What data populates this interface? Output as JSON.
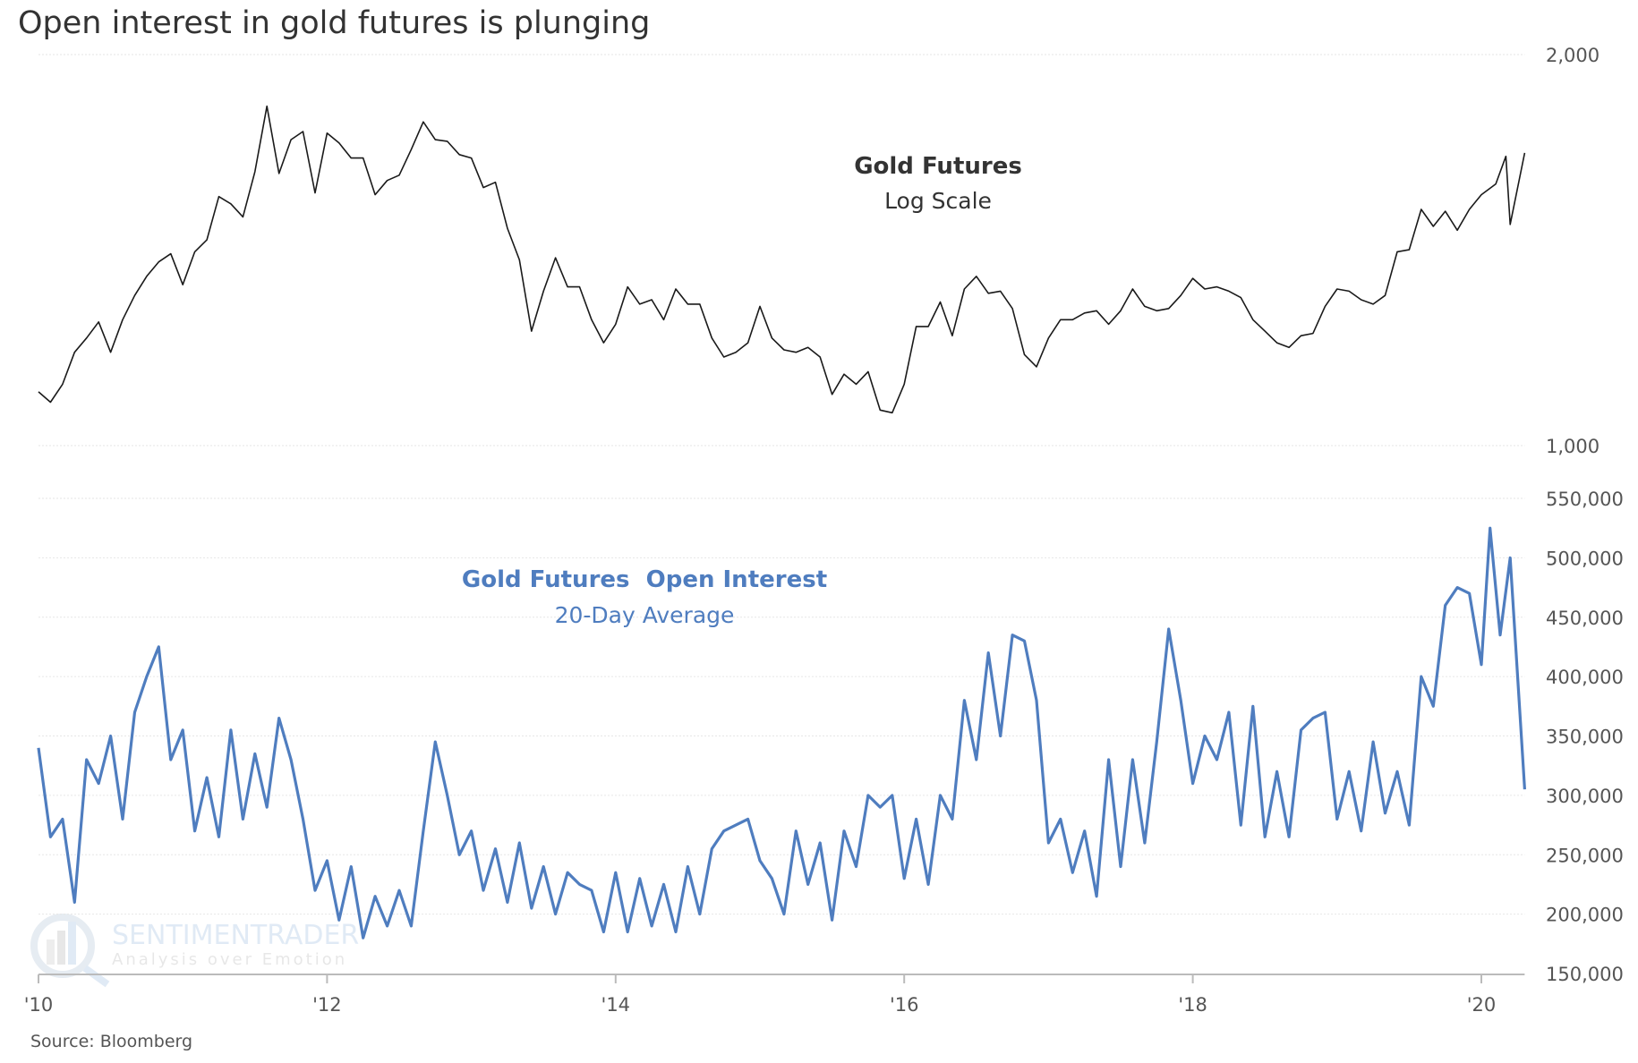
{
  "chart_data": [
    {
      "type": "line",
      "title": "Open interest in gold futures is plunging",
      "series_label": "Gold Futures",
      "series_sublabel": "Log Scale",
      "yscale": "log",
      "ylim": [
        1000,
        2000
      ],
      "yticks": [
        {
          "value": 1000,
          "label": "1,000"
        },
        {
          "value": 2000,
          "label": "2,000"
        }
      ],
      "color": "#1a1a1a",
      "start_year": 2010,
      "monthly_values": [
        1100,
        1080,
        1115,
        1180,
        1210,
        1245,
        1180,
        1250,
        1305,
        1350,
        1385,
        1405,
        1330,
        1410,
        1440,
        1555,
        1535,
        1500,
        1625,
        1825,
        1620,
        1720,
        1745,
        1565,
        1740,
        1710,
        1665,
        1665,
        1560,
        1600,
        1615,
        1690,
        1775,
        1720,
        1715,
        1675,
        1665,
        1580,
        1595,
        1470,
        1390,
        1225,
        1315,
        1395,
        1325,
        1325,
        1250,
        1200,
        1240,
        1325,
        1285,
        1295,
        1250,
        1320,
        1285,
        1285,
        1210,
        1170,
        1180,
        1200,
        1280,
        1210,
        1185,
        1180,
        1190,
        1170,
        1095,
        1135,
        1115,
        1140,
        1065,
        1060,
        1115,
        1235,
        1235,
        1290,
        1215,
        1320,
        1350,
        1310,
        1315,
        1275,
        1175,
        1150,
        1210,
        1250,
        1250,
        1265,
        1270,
        1240,
        1270,
        1320,
        1280,
        1270,
        1275,
        1305,
        1345,
        1320,
        1325,
        1315,
        1300,
        1250,
        1225,
        1200,
        1190,
        1215,
        1220,
        1280,
        1320,
        1315,
        1295,
        1285,
        1305,
        1410,
        1415,
        1520,
        1475,
        1515,
        1465,
        1520
      ],
      "tail_points": [
        [
          2020.0,
          1560
        ],
        [
          2020.1,
          1590
        ],
        [
          2020.17,
          1670
        ],
        [
          2020.2,
          1480
        ],
        [
          2020.3,
          1680
        ]
      ]
    },
    {
      "type": "line",
      "series_label": "Gold Futures  Open Interest",
      "series_sublabel": "20-Day Average",
      "ylim": [
        150000,
        550000
      ],
      "yticks": [
        {
          "value": 150000,
          "label": "150,000"
        },
        {
          "value": 200000,
          "label": "200,000"
        },
        {
          "value": 250000,
          "label": "250,000"
        },
        {
          "value": 300000,
          "label": "300,000"
        },
        {
          "value": 350000,
          "label": "350,000"
        },
        {
          "value": 400000,
          "label": "400,000"
        },
        {
          "value": 450000,
          "label": "450,000"
        },
        {
          "value": 500000,
          "label": "500,000"
        },
        {
          "value": 550000,
          "label": "550,000"
        }
      ],
      "color": "#4f7dbf",
      "start_year": 2010,
      "monthly_values": [
        340000,
        265000,
        280000,
        210000,
        330000,
        310000,
        350000,
        280000,
        370000,
        400000,
        425000,
        330000,
        355000,
        270000,
        315000,
        265000,
        355000,
        280000,
        335000,
        290000,
        365000,
        330000,
        280000,
        220000,
        245000,
        195000,
        240000,
        180000,
        215000,
        190000,
        220000,
        190000,
        270000,
        345000,
        300000,
        250000,
        270000,
        220000,
        255000,
        210000,
        260000,
        205000,
        240000,
        200000,
        235000,
        225000,
        220000,
        185000,
        235000,
        185000,
        230000,
        190000,
        225000,
        185000,
        240000,
        200000,
        255000,
        270000,
        275000,
        280000,
        245000,
        230000,
        200000,
        270000,
        225000,
        260000,
        195000,
        270000,
        240000,
        300000,
        290000,
        300000,
        230000,
        280000,
        225000,
        300000,
        280000,
        380000,
        330000,
        420000,
        350000,
        435000,
        430000,
        380000,
        260000,
        280000,
        235000,
        270000,
        215000,
        330000,
        240000,
        330000,
        260000,
        345000,
        440000,
        380000,
        310000,
        350000,
        330000,
        370000,
        275000,
        375000,
        265000,
        320000,
        265000,
        355000,
        365000,
        370000,
        280000,
        320000,
        270000,
        345000,
        285000,
        320000,
        275000,
        400000,
        375000,
        460000,
        475000,
        470000
      ],
      "tail_points": [
        [
          2020.0,
          410000
        ],
        [
          2020.06,
          525000
        ],
        [
          2020.13,
          435000
        ],
        [
          2020.2,
          500000
        ],
        [
          2020.3,
          305000
        ]
      ]
    }
  ],
  "x_axis": {
    "ticks": [
      {
        "value": 2010,
        "label": "'10"
      },
      {
        "value": 2012,
        "label": "'12"
      },
      {
        "value": 2014,
        "label": "'14"
      },
      {
        "value": 2016,
        "label": "'16"
      },
      {
        "value": 2018,
        "label": "'18"
      },
      {
        "value": 2020,
        "label": "'20"
      }
    ],
    "range": [
      2010,
      2020.3
    ]
  },
  "source": "Source:  Bloomberg",
  "watermark": {
    "name": "SENTIMENTRADER",
    "tagline": "Analysis over Emotion"
  }
}
